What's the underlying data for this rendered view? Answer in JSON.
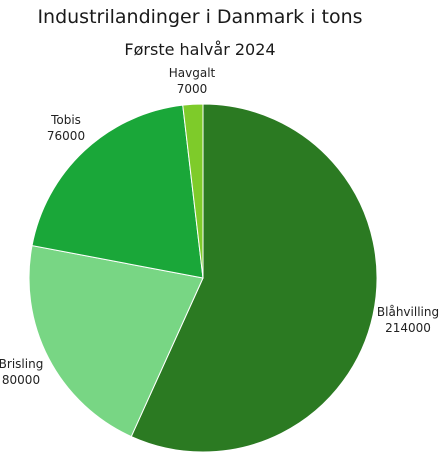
{
  "chart_data": {
    "type": "pie",
    "title": "Industrilandinger i Danmark i tons",
    "subtitle": "Første halvår 2024",
    "unit": "tons",
    "slices": [
      {
        "name": "Blåhvilling",
        "value": 214000,
        "value_label": "214000",
        "color": "#2b7a22"
      },
      {
        "name": "Brisling",
        "value": 80000,
        "value_label": "80000",
        "color": "#78d684"
      },
      {
        "name": "Tobis",
        "value": 76000,
        "value_label": "76000",
        "color": "#1aa739"
      },
      {
        "name": "Havgalt",
        "value": 7000,
        "value_label": "7000",
        "color": "#7ecb2a"
      }
    ],
    "legend": "none",
    "start_angle": "top",
    "direction": "clockwise"
  }
}
